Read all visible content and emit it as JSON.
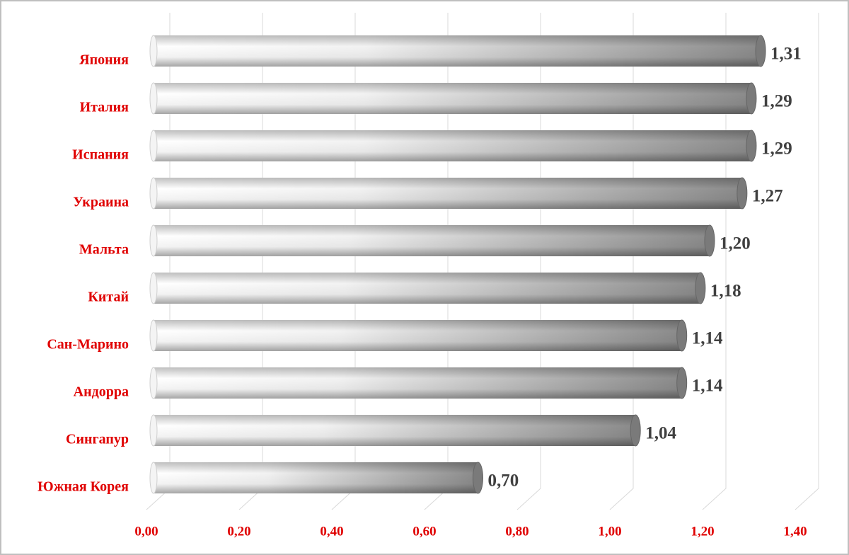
{
  "chart_data": {
    "type": "bar",
    "orientation": "horizontal",
    "categories": [
      "Япония",
      "Италия",
      "Испания",
      "Украина",
      "Мальта",
      "Китай",
      "Сан-Марино",
      "Андорра",
      "Сингапур",
      "Южная Корея"
    ],
    "values": [
      1.31,
      1.29,
      1.29,
      1.27,
      1.2,
      1.18,
      1.14,
      1.14,
      1.04,
      0.7
    ],
    "value_labels": [
      "1,31",
      "1,29",
      "1,29",
      "1,27",
      "1,20",
      "1,18",
      "1,14",
      "1,14",
      "1,04",
      "0,70"
    ],
    "color": "#8c8c8c",
    "xlim": [
      0,
      1.4
    ],
    "xticks": [
      {
        "value": 0,
        "label": "0,00"
      },
      {
        "value": 0.2,
        "label": "0,20"
      },
      {
        "value": 0.4,
        "label": "0,40"
      },
      {
        "value": 0.6,
        "label": "0,60"
      },
      {
        "value": 0.8,
        "label": "0,80"
      },
      {
        "value": 1.0,
        "label": "1,00"
      },
      {
        "value": 1.2,
        "label": "1,20"
      },
      {
        "value": 1.4,
        "label": "1,40"
      }
    ],
    "grid": true
  }
}
